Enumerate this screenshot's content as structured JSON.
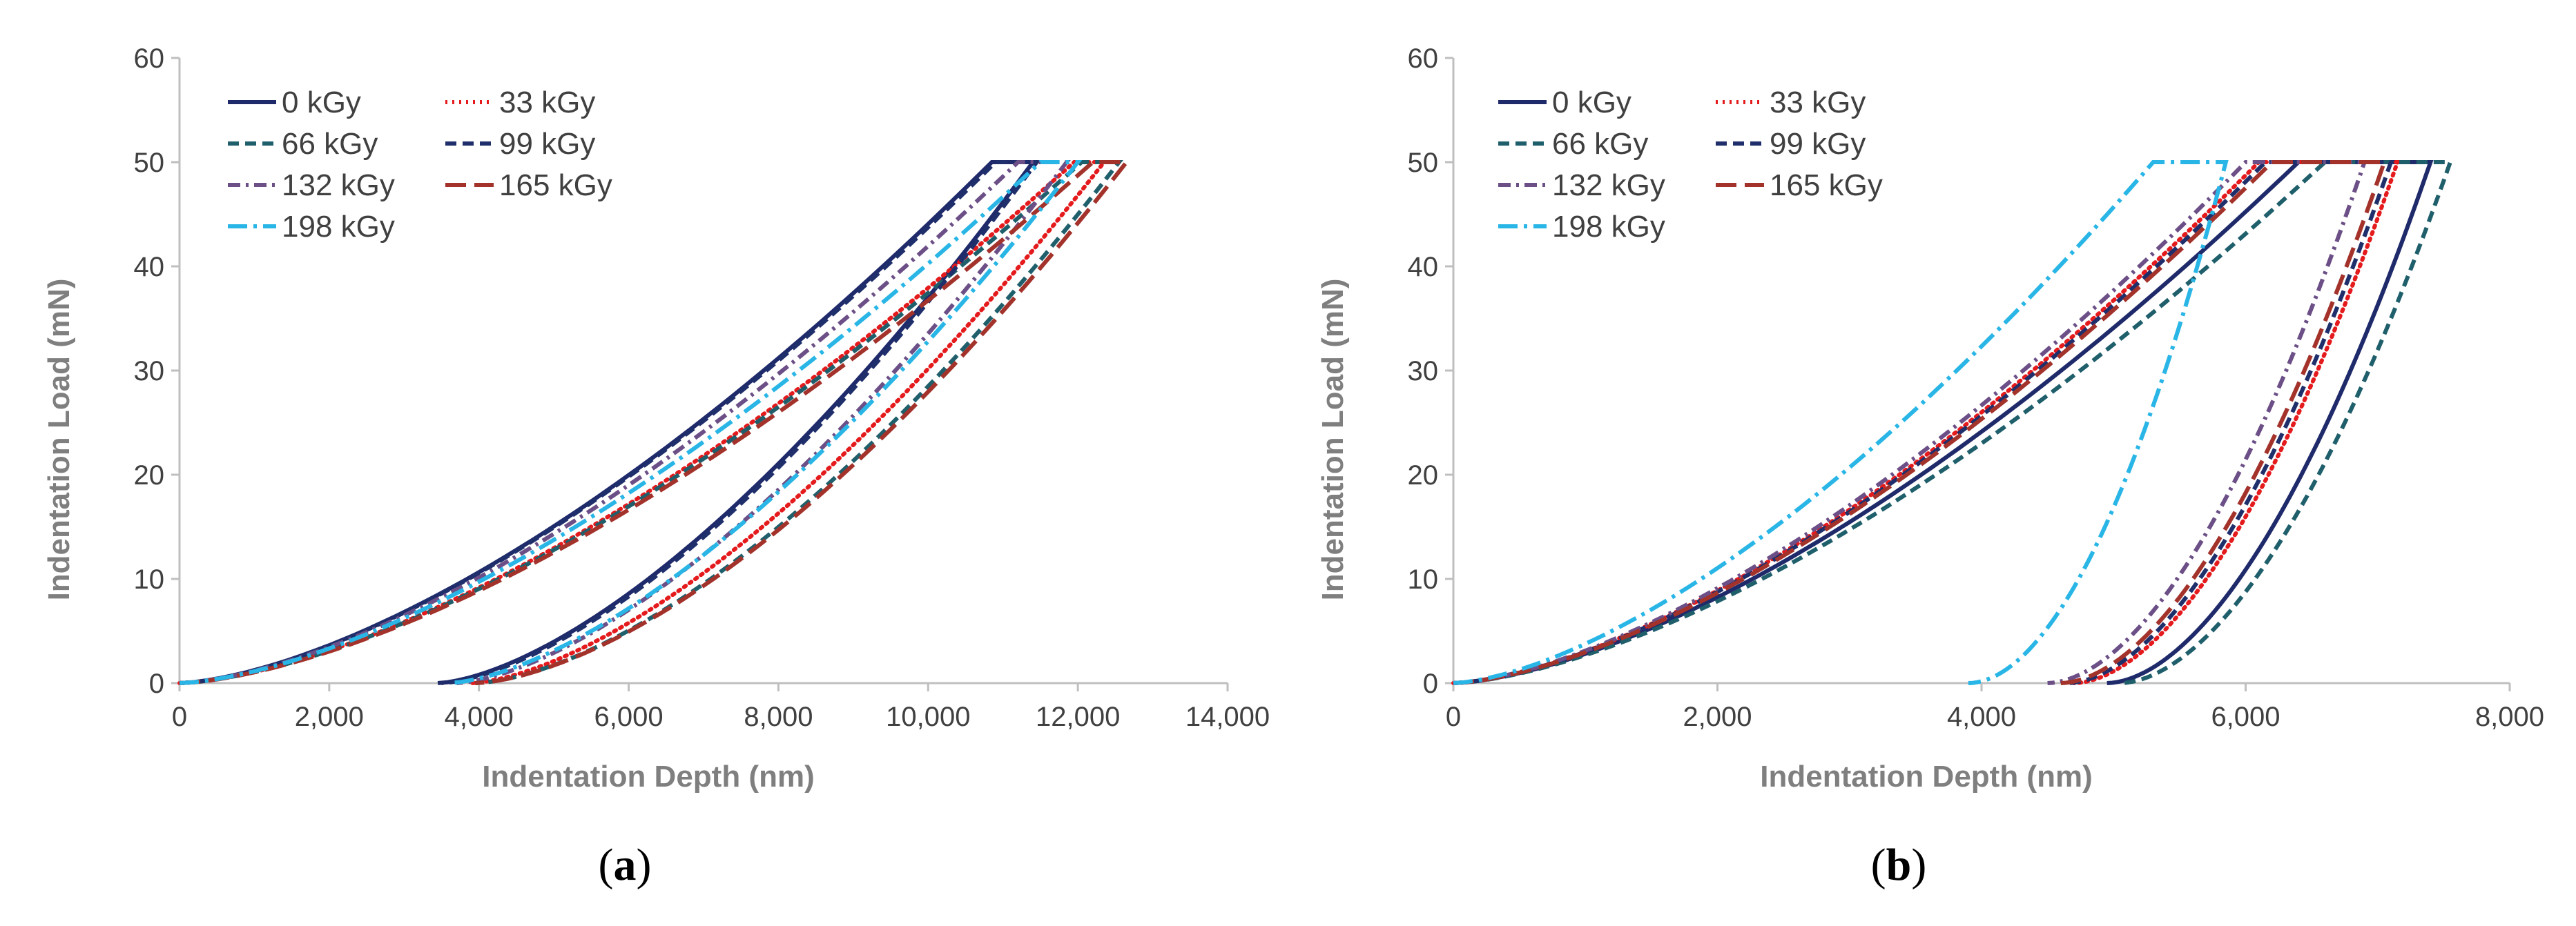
{
  "colors": {
    "0 kGy": "#1f2a6b",
    "33 kGy": "#e41a1c",
    "66 kGy": "#1f5f6b",
    "99 kGy": "#1f2f6b",
    "132 kGy": "#6b4f86",
    "165 kGy": "#a3322b",
    "198 kGy": "#29b6e6",
    "axis": "#bfbfbf",
    "tick_text": "#404040",
    "axis_title": "#7f7f7f"
  },
  "chart_data": [
    {
      "type": "line",
      "panel_label": "a",
      "xlabel": "Indentation Depth (nm)",
      "ylabel": "Indentation Load (mN)",
      "xlim": [
        0,
        14000
      ],
      "ylim": [
        0,
        60
      ],
      "x_ticks": [
        "0",
        "2,000",
        "4,000",
        "6,000",
        "8,000",
        "10,000",
        "12,000",
        "14,000"
      ],
      "y_ticks": [
        "0",
        "10",
        "20",
        "30",
        "40",
        "50",
        "60"
      ],
      "grid": false,
      "legend_position": "top-left",
      "series": [
        {
          "name": "0 kGy",
          "dash": "solid",
          "load": {
            "hmax": 10850,
            "k": 1.0
          },
          "hold_end": 11400,
          "unload": {
            "hf": 3450,
            "n": 1.55
          }
        },
        {
          "name": "33 kGy",
          "dash": "dotted",
          "load": {
            "hmax": 11950,
            "k": 0.95
          },
          "hold_end": 12350,
          "unload": {
            "hf": 3900,
            "n": 1.55
          }
        },
        {
          "name": "66 kGy",
          "dash": "dashed",
          "load": {
            "hmax": 12050,
            "k": 0.97
          },
          "hold_end": 12550,
          "unload": {
            "hf": 3950,
            "n": 1.6
          }
        },
        {
          "name": "99 kGy",
          "dash": "dashed",
          "load": {
            "hmax": 10900,
            "k": 1.05
          },
          "hold_end": 11450,
          "unload": {
            "hf": 3500,
            "n": 1.55
          }
        },
        {
          "name": "132 kGy",
          "dash": "dashdot",
          "load": {
            "hmax": 11200,
            "k": 1.02
          },
          "hold_end": 11850,
          "unload": {
            "hf": 3700,
            "n": 1.55
          }
        },
        {
          "name": "165 kGy",
          "dash": "longdash",
          "load": {
            "hmax": 12200,
            "k": 0.95
          },
          "hold_end": 12650,
          "unload": {
            "hf": 3950,
            "n": 1.6
          }
        },
        {
          "name": "198 kGy",
          "dash": "longdashdot",
          "load": {
            "hmax": 11500,
            "k": 0.98
          },
          "hold_end": 12000,
          "unload": {
            "hf": 3600,
            "n": 1.55
          }
        }
      ]
    },
    {
      "type": "line",
      "panel_label": "b",
      "xlabel": "Indentation Depth (nm)",
      "ylabel": "Indentation Load (mN)",
      "xlim": [
        0,
        8000
      ],
      "ylim": [
        0,
        60
      ],
      "x_ticks": [
        "0",
        "2,000",
        "4,000",
        "6,000",
        "8,000"
      ],
      "y_ticks": [
        "0",
        "10",
        "20",
        "30",
        "40",
        "50",
        "60"
      ],
      "grid": false,
      "legend_position": "top-left",
      "series": [
        {
          "name": "0 kGy",
          "dash": "solid",
          "load": {
            "hmax": 6400,
            "k": 1.45
          },
          "hold_end": 7400,
          "unload": {
            "hf": 4950,
            "n": 1.8
          }
        },
        {
          "name": "33 kGy",
          "dash": "dotted",
          "load": {
            "hmax": 6100,
            "k": 1.4
          },
          "hold_end": 7150,
          "unload": {
            "hf": 4700,
            "n": 1.8
          }
        },
        {
          "name": "66 kGy",
          "dash": "dashed",
          "load": {
            "hmax": 6600,
            "k": 1.5
          },
          "hold_end": 7550,
          "unload": {
            "hf": 5050,
            "n": 1.8
          }
        },
        {
          "name": "99 kGy",
          "dash": "dashed",
          "load": {
            "hmax": 6150,
            "k": 1.42
          },
          "hold_end": 7100,
          "unload": {
            "hf": 4650,
            "n": 1.8
          }
        },
        {
          "name": "132 kGy",
          "dash": "dashdot",
          "load": {
            "hmax": 6000,
            "k": 1.38
          },
          "hold_end": 6900,
          "unload": {
            "hf": 4500,
            "n": 1.8
          }
        },
        {
          "name": "165 kGy",
          "dash": "longdash",
          "load": {
            "hmax": 6200,
            "k": 1.45
          },
          "hold_end": 7050,
          "unload": {
            "hf": 4600,
            "n": 1.8
          }
        },
        {
          "name": "198 kGy",
          "dash": "longdashdot",
          "load": {
            "hmax": 5300,
            "k": 1.3
          },
          "hold_end": 5850,
          "unload": {
            "hf": 3900,
            "n": 1.9
          }
        }
      ]
    }
  ]
}
